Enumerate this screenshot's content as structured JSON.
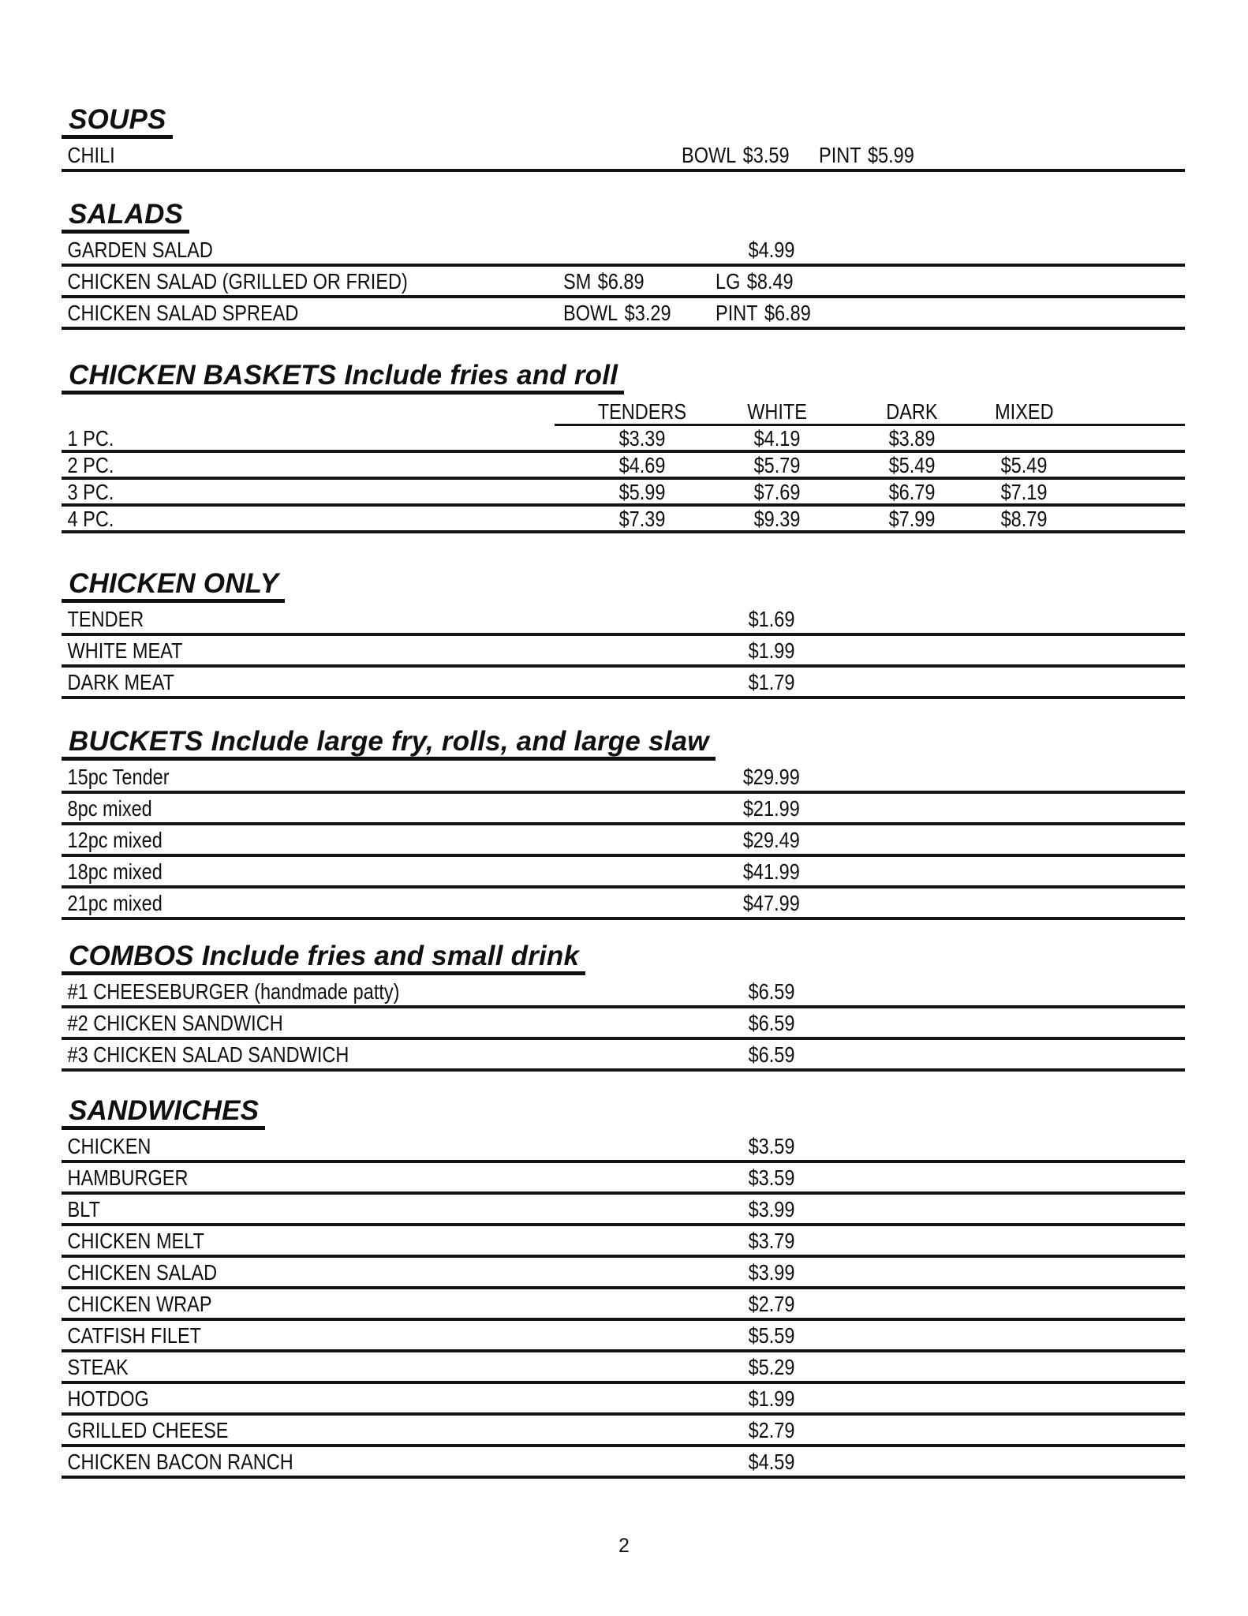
{
  "page": {
    "number": "2"
  },
  "sections": [
    {
      "id": "soups",
      "title": "SOUPS",
      "rows": [
        {
          "name": "CHILI",
          "segments": [
            {
              "label": "BOWL",
              "price": "$3.59"
            },
            {
              "label": "PINT",
              "price": "$5.99"
            }
          ]
        }
      ]
    },
    {
      "id": "salads",
      "title": "SALADS",
      "rows": [
        {
          "name": "GARDEN SALAD",
          "price": "$4.99"
        },
        {
          "name": "CHICKEN SALAD (GRILLED OR FRIED)",
          "segments": [
            {
              "label": "SM",
              "price": "$6.89"
            },
            {
              "label": "LG",
              "price": "$8.49"
            }
          ]
        },
        {
          "name": "CHICKEN SALAD SPREAD",
          "segments": [
            {
              "label": "BOWL",
              "price": "$3.29"
            },
            {
              "label": "PINT",
              "price": "$6.89"
            }
          ]
        }
      ]
    },
    {
      "id": "chicken-baskets",
      "title": "CHICKEN BASKETS",
      "subtitle": "Include fries and roll",
      "columns": [
        "TENDERS",
        "WHITE",
        "DARK",
        "MIXED"
      ],
      "rows": [
        {
          "name": "1 PC.",
          "prices": [
            "$3.39",
            "$4.19",
            "$3.89",
            ""
          ]
        },
        {
          "name": "2 PC.",
          "prices": [
            "$4.69",
            "$5.79",
            "$5.49",
            "$5.49"
          ]
        },
        {
          "name": "3 PC.",
          "prices": [
            "$5.99",
            "$7.69",
            "$6.79",
            "$7.19"
          ]
        },
        {
          "name": "4 PC.",
          "prices": [
            "$7.39",
            "$9.39",
            "$7.99",
            "$8.79"
          ]
        }
      ]
    },
    {
      "id": "chicken-only",
      "title": "CHICKEN ONLY",
      "rows": [
        {
          "name": "TENDER",
          "price": "$1.69"
        },
        {
          "name": "WHITE MEAT",
          "price": "$1.99"
        },
        {
          "name": "DARK MEAT",
          "price": "$1.79"
        }
      ]
    },
    {
      "id": "buckets",
      "title": "BUCKETS",
      "subtitle": "Include large fry, rolls, and large slaw",
      "rows": [
        {
          "name": "15pc Tender",
          "price": "$29.99"
        },
        {
          "name": "8pc mixed",
          "price": "$21.99"
        },
        {
          "name": "12pc mixed",
          "price": "$29.49"
        },
        {
          "name": "18pc mixed",
          "price": "$41.99"
        },
        {
          "name": "21pc mixed",
          "price": "$47.99"
        }
      ]
    },
    {
      "id": "combos",
      "title": "COMBOS",
      "subtitle": "Include fries and small drink",
      "rows": [
        {
          "name": "#1 CHEESEBURGER (handmade patty)",
          "price": "$6.59"
        },
        {
          "name": "#2 CHICKEN SANDWICH",
          "price": "$6.59"
        },
        {
          "name": "#3 CHICKEN SALAD SANDWICH",
          "price": "$6.59"
        }
      ]
    },
    {
      "id": "sandwiches",
      "title": "SANDWICHES",
      "rows": [
        {
          "name": "CHICKEN",
          "price": "$3.59"
        },
        {
          "name": "HAMBURGER",
          "price": "$3.59"
        },
        {
          "name": "BLT",
          "price": "$3.99"
        },
        {
          "name": "CHICKEN MELT",
          "price": "$3.79"
        },
        {
          "name": "CHICKEN SALAD",
          "price": "$3.99"
        },
        {
          "name": "CHICKEN WRAP",
          "price": "$2.79"
        },
        {
          "name": "CATFISH FILET",
          "price": "$5.59"
        },
        {
          "name": "STEAK",
          "price": "$5.29"
        },
        {
          "name": "HOTDOG",
          "price": "$1.99"
        },
        {
          "name": "GRILLED CHEESE",
          "price": "$2.79"
        },
        {
          "name": "CHICKEN BACON RANCH",
          "price": "$4.59"
        }
      ]
    }
  ]
}
